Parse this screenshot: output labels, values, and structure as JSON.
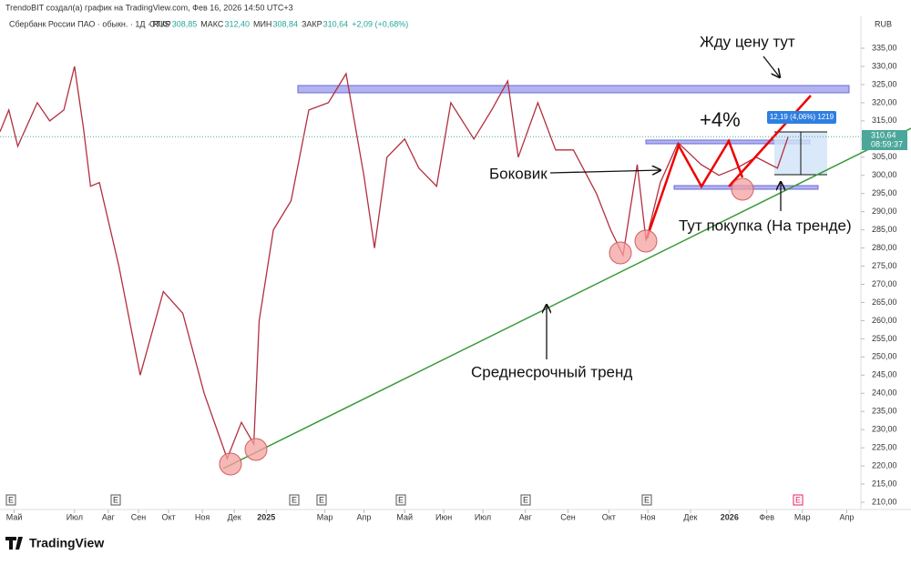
{
  "header": {
    "author": "TrendoBIT создал(а) график на TradingView.com, Фев 16, 2026 14:50 UTC+3",
    "symbol": "Сбербанк России ПАО · обыкн. · 1Д · RUS",
    "ohlc": [
      {
        "label": "ОТКР",
        "value": "308,85"
      },
      {
        "label": "МАКС",
        "value": "312,40"
      },
      {
        "label": "МИН",
        "value": "308,84"
      },
      {
        "label": "ЗАКР",
        "value": "310,64"
      }
    ],
    "change": "+2,09 (+0,68%)"
  },
  "chart_data": {
    "type": "line",
    "color": "#b22f3f",
    "x": [
      0,
      5,
      10,
      21,
      28,
      36,
      42,
      47,
      51,
      56,
      67,
      79,
      92,
      103,
      115,
      128,
      136,
      143,
      146,
      154,
      164,
      174,
      185,
      195,
      205,
      211,
      218,
      228,
      236,
      246,
      254,
      267,
      277,
      286,
      292,
      303,
      313,
      323,
      336,
      344,
      351,
      359,
      364,
      372,
      382,
      395,
      405,
      415,
      426,
      438,
      444
    ],
    "values": [
      312,
      318,
      308,
      320,
      315,
      318,
      330,
      313,
      297,
      298,
      275,
      245,
      268,
      262,
      240,
      222,
      232,
      226,
      260,
      285,
      293,
      318,
      320,
      328,
      300,
      280,
      305,
      310,
      302,
      297,
      320,
      310,
      318,
      326,
      305,
      320,
      307,
      307,
      295,
      285,
      278,
      303,
      282,
      298,
      309,
      303,
      300,
      302,
      305,
      302,
      310.64
    ],
    "currency": "RUB",
    "last_price": {
      "value": 310.64,
      "label": "310,64"
    },
    "countdown": "08:59:37",
    "measure": "12,19 (4,06%) 1219",
    "annotations": [
      "Жду цену тут",
      "+4%",
      "Боковик",
      "Тут покупка (На тренде)",
      "Среднесрочный тренд"
    ],
    "xlim": [
      0,
      485
    ],
    "ylim": [
      208,
      344
    ],
    "xticks": [
      {
        "value": 8,
        "label": "Май"
      },
      {
        "value": 42,
        "label": "Июл"
      },
      {
        "value": 61,
        "label": "Авг"
      },
      {
        "value": 78,
        "label": "Сен"
      },
      {
        "value": 95,
        "label": "Окт"
      },
      {
        "value": 114,
        "label": "Ноя"
      },
      {
        "value": 132,
        "label": "Дек"
      },
      {
        "value": 150,
        "label": "2025"
      },
      {
        "value": 183,
        "label": "Мар"
      },
      {
        "value": 205,
        "label": "Апр"
      },
      {
        "value": 228,
        "label": "Май"
      },
      {
        "value": 250,
        "label": "Июн"
      },
      {
        "value": 272,
        "label": "Июл"
      },
      {
        "value": 296,
        "label": "Авг"
      },
      {
        "value": 320,
        "label": "Сен"
      },
      {
        "value": 343,
        "label": "Окт"
      },
      {
        "value": 365,
        "label": "Ноя"
      },
      {
        "value": 389,
        "label": "Дек"
      },
      {
        "value": 411,
        "label": "2026"
      },
      {
        "value": 432,
        "label": "Фев"
      },
      {
        "value": 452,
        "label": "Мар"
      },
      {
        "value": 477,
        "label": "Апр"
      }
    ],
    "yticks": [
      {
        "value": 210,
        "label": "210,00"
      },
      {
        "value": 215,
        "label": "215,00"
      },
      {
        "value": 220,
        "label": "220,00"
      },
      {
        "value": 225,
        "label": "225,00"
      },
      {
        "value": 230,
        "label": "230,00"
      },
      {
        "value": 235,
        "label": "235,00"
      },
      {
        "value": 240,
        "label": "240,00"
      },
      {
        "value": 245,
        "label": "245,00"
      },
      {
        "value": 250,
        "label": "250,00"
      },
      {
        "value": 255,
        "label": "255,00"
      },
      {
        "value": 260,
        "label": "260,00"
      },
      {
        "value": 265,
        "label": "265,00"
      },
      {
        "value": 270,
        "label": "270,00"
      },
      {
        "value": 275,
        "label": "275,00"
      },
      {
        "value": 280,
        "label": "280,00"
      },
      {
        "value": 285,
        "label": "285,00"
      },
      {
        "value": 290,
        "label": "290,00"
      },
      {
        "value": 295,
        "label": "295,00"
      },
      {
        "value": 300,
        "label": "300,00"
      },
      {
        "value": 305,
        "label": "305,00"
      },
      {
        "value": 310,
        "label": "310,00"
      },
      {
        "value": 315,
        "label": "315,00"
      },
      {
        "value": 320,
        "label": "320,00"
      },
      {
        "value": 325,
        "label": "325,00"
      },
      {
        "value": 330,
        "label": "330,00"
      },
      {
        "value": 335,
        "label": "335,00"
      }
    ]
  },
  "events": [
    "E",
    "E",
    "E",
    "E",
    "E",
    "E",
    "E",
    "E"
  ],
  "footer": "TradingView"
}
